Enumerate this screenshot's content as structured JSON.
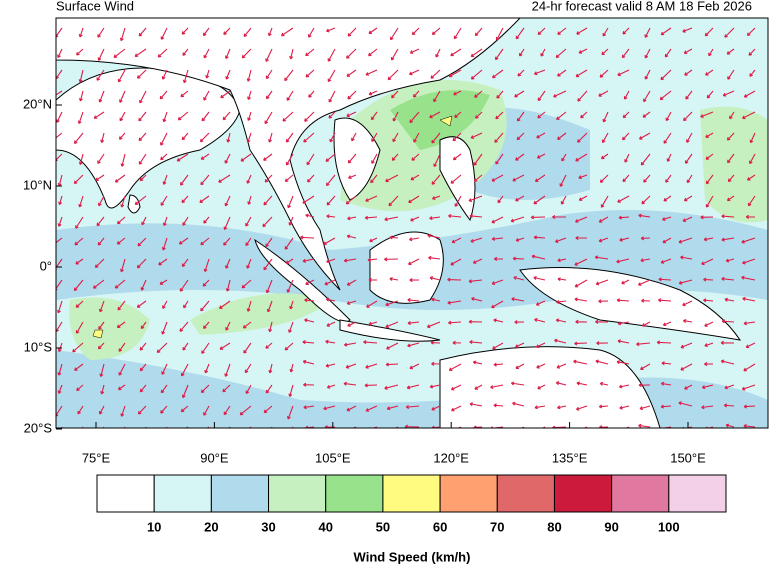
{
  "header": {
    "title": "Surface Wind",
    "subtitle": "24-hr forecast valid 8 AM 18 Feb 2026"
  },
  "map": {
    "lat_labels": [
      "20°N",
      "10°N",
      "0°",
      "10°S",
      "20°S"
    ],
    "lon_labels": [
      "75°E",
      "90°E",
      "105°E",
      "120°E",
      "135°E",
      "150°E"
    ]
  },
  "colorbar": {
    "colors": [
      "#ffffff",
      "#d6f5f5",
      "#b0dbec",
      "#c6f0c0",
      "#98e28c",
      "#fffb80",
      "#ffa070",
      "#e06868",
      "#cc1a3c",
      "#e078a0",
      "#f4d0e8"
    ],
    "labels": [
      10,
      20,
      30,
      40,
      50,
      60,
      70,
      80,
      90,
      100
    ],
    "title": "Wind Speed (km/h)"
  }
}
